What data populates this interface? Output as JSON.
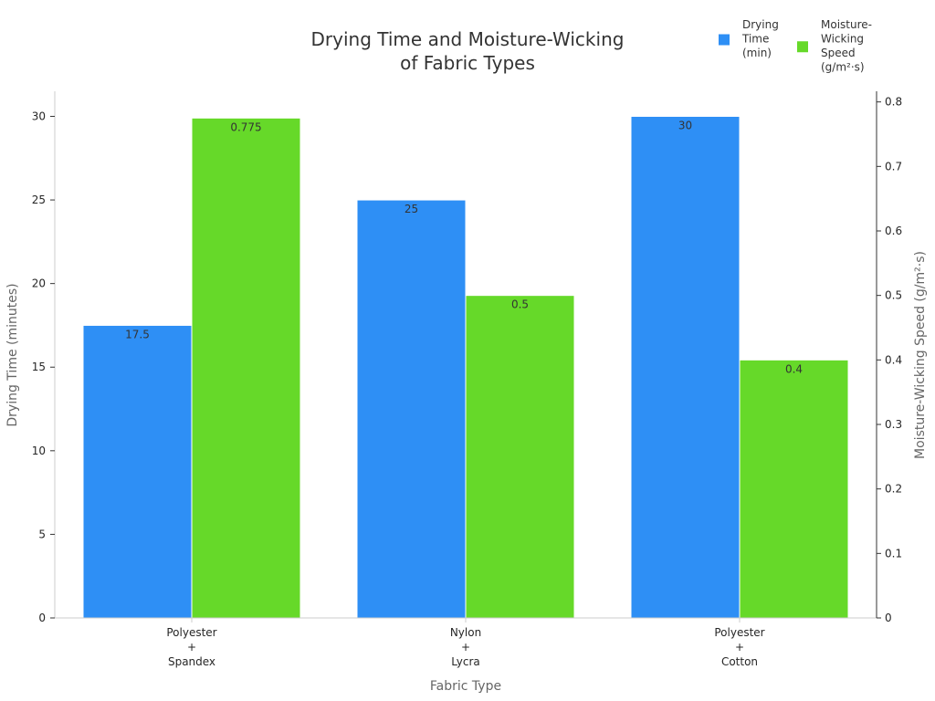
{
  "chart_data": {
    "type": "bar",
    "title_lines": [
      "Drying Time and Moisture-Wicking",
      "of Fabric Types"
    ],
    "xlabel": "Fabric Type",
    "ylabel_left": "Drying Time (minutes)",
    "ylabel_right": "Moisture-Wicking Speed (g/m²·s)",
    "categories": [
      [
        "Polyester",
        "+",
        "Spandex"
      ],
      [
        "Nylon",
        "+",
        "Lycra"
      ],
      [
        "Polyester",
        "+",
        "Cotton"
      ]
    ],
    "series": [
      {
        "name_lines": [
          "Drying",
          "Time",
          "(min)"
        ],
        "axis": "left",
        "color": "#2e8ff5",
        "values": [
          17.5,
          25,
          30
        ],
        "labels": [
          "17.5",
          "25",
          "30"
        ]
      },
      {
        "name_lines": [
          "Moisture-",
          "Wicking",
          "Speed",
          "(g/m²·s)"
        ],
        "axis": "right",
        "color": "#66d929",
        "values": [
          0.775,
          0.5,
          0.4
        ],
        "labels": [
          "0.775",
          "0.5",
          "0.4"
        ]
      }
    ],
    "y_left": {
      "lim": [
        0,
        31.5
      ],
      "ticks": [
        0,
        5,
        10,
        15,
        20,
        25,
        30
      ],
      "tick_labels": [
        "0",
        "5",
        "10",
        "15",
        "20",
        "25",
        "30"
      ]
    },
    "y_right": {
      "lim": [
        0,
        0.8165
      ],
      "ticks": [
        0,
        0.1,
        0.2,
        0.3,
        0.4,
        0.5,
        0.6,
        0.7,
        0.8
      ],
      "tick_labels": [
        "0",
        "0.1",
        "0.2",
        "0.3",
        "0.4",
        "0.5",
        "0.6",
        "0.7",
        "0.8"
      ]
    },
    "grid": false,
    "legend_position": "top-right"
  }
}
